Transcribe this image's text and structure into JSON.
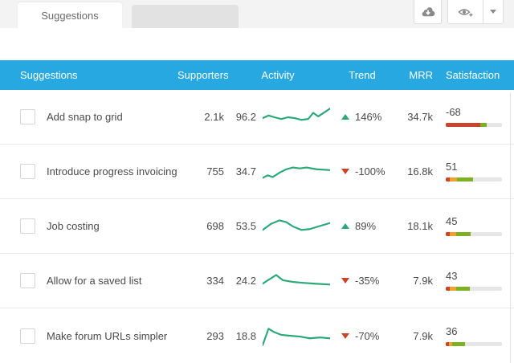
{
  "tabs": {
    "active_label": "Suggestions",
    "inactive_label": ""
  },
  "toolbar": {
    "icons": [
      "cloud-download-icon",
      "eye-plus-icon",
      "caret-down-icon"
    ]
  },
  "colors": {
    "header_blue": "#28a8e0",
    "sparkline_green": "#2aa876",
    "trend_up_green": "#2aa876",
    "trend_down_red": "#c8452c",
    "bar_red": "#c8452c",
    "bar_orange": "#eda32c",
    "bar_green": "#7db022",
    "bar_track_gray": "#e6e6e6"
  },
  "table": {
    "columns": {
      "name": "Suggestions",
      "supporters": "Supporters",
      "activity": "Activity",
      "trend": "Trend",
      "mrr": "MRR",
      "satisfaction": "Satisfaction"
    },
    "rows": [
      {
        "name": "Add snap to grid",
        "supporters": "2.1k",
        "activity": "96.2",
        "trend": "146%",
        "trend_dir": "up",
        "mrr": "34.7k",
        "satisfaction": "-68",
        "bar": {
          "red": 61,
          "orange": 0,
          "green": 12
        },
        "spark": [
          [
            0,
            13
          ],
          [
            7,
            10
          ],
          [
            14,
            12
          ],
          [
            22,
            14
          ],
          [
            30,
            12
          ],
          [
            38,
            13
          ],
          [
            46,
            15
          ],
          [
            54,
            14
          ],
          [
            60,
            7
          ],
          [
            66,
            11
          ],
          [
            80,
            2
          ]
        ]
      },
      {
        "name": "Introduce progress invoicing",
        "supporters": "755",
        "activity": "34.7",
        "trend": "-100%",
        "trend_dir": "down",
        "mrr": "16.8k",
        "satisfaction": "51",
        "bar": {
          "red": 7,
          "orange": 13,
          "green": 28
        },
        "spark": [
          [
            0,
            19
          ],
          [
            6,
            16
          ],
          [
            12,
            18
          ],
          [
            20,
            13
          ],
          [
            28,
            9
          ],
          [
            36,
            7
          ],
          [
            44,
            8
          ],
          [
            52,
            7
          ],
          [
            64,
            9
          ],
          [
            80,
            10
          ]
        ]
      },
      {
        "name": "Job costing",
        "supporters": "698",
        "activity": "53.5",
        "trend": "89%",
        "trend_dir": "up",
        "mrr": "18.1k",
        "satisfaction": "45",
        "bar": {
          "red": 7,
          "orange": 11,
          "green": 26
        },
        "spark": [
          [
            0,
            16
          ],
          [
            10,
            9
          ],
          [
            20,
            5
          ],
          [
            28,
            7
          ],
          [
            36,
            12
          ],
          [
            46,
            16
          ],
          [
            56,
            15
          ],
          [
            66,
            12
          ],
          [
            80,
            8
          ]
        ]
      },
      {
        "name": "Allow for a saved list",
        "supporters": "334",
        "activity": "24.2",
        "trend": "-35%",
        "trend_dir": "down",
        "mrr": "7.9k",
        "satisfaction": "43",
        "bar": {
          "red": 7,
          "orange": 11,
          "green": 25
        },
        "spark": [
          [
            0,
            15
          ],
          [
            8,
            10
          ],
          [
            16,
            5
          ],
          [
            24,
            11
          ],
          [
            36,
            13
          ],
          [
            48,
            14
          ],
          [
            62,
            15
          ],
          [
            80,
            16
          ]
        ]
      },
      {
        "name": "Make forum URLs simpler",
        "supporters": "293",
        "activity": "18.8",
        "trend": "-70%",
        "trend_dir": "down",
        "mrr": "7.9k",
        "satisfaction": "36",
        "bar": {
          "red": 5,
          "orange": 7,
          "green": 22
        },
        "spark": [
          [
            0,
            23
          ],
          [
            7,
            4
          ],
          [
            14,
            8
          ],
          [
            22,
            11
          ],
          [
            32,
            12
          ],
          [
            44,
            13
          ],
          [
            56,
            15
          ],
          [
            68,
            14
          ],
          [
            80,
            15
          ]
        ]
      }
    ]
  }
}
